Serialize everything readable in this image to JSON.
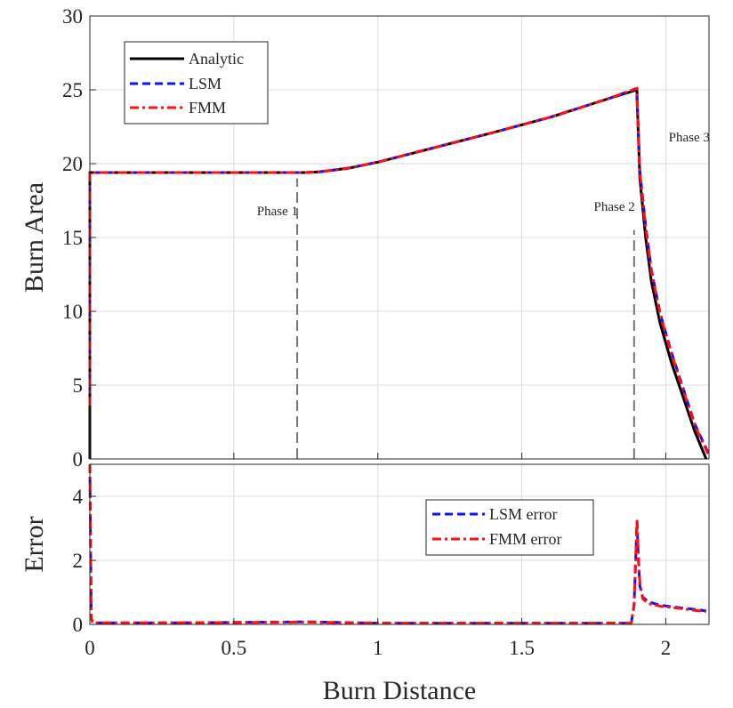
{
  "chart_data": [
    {
      "type": "line",
      "xlabel": "Burn Distance",
      "ylabel": "Burn Area",
      "xlim": [
        0,
        2.15
      ],
      "ylim": [
        0,
        30
      ],
      "xticks": [
        0,
        0.5,
        1,
        1.5,
        2
      ],
      "xtick_labels": [
        "0",
        "0.5",
        "1",
        "1.5",
        "2"
      ],
      "yticks": [
        0,
        5,
        10,
        15,
        20,
        25,
        30
      ],
      "ytick_labels": [
        "0",
        "5",
        "10",
        "15",
        "20",
        "25",
        "30"
      ],
      "grid": true,
      "legend": "top-left",
      "series": [
        {
          "name": "Analytic",
          "color": "#000000",
          "style": "solid",
          "x": [
            0,
            0,
            0.75,
            0.8,
            0.9,
            1.0,
            1.2,
            1.4,
            1.6,
            1.8,
            1.9,
            1.9,
            1.91,
            1.93,
            1.95,
            1.98,
            2.02,
            2.06,
            2.1,
            2.14
          ],
          "y": [
            0,
            19.4,
            19.4,
            19.45,
            19.7,
            20.1,
            21.1,
            22.1,
            23.15,
            24.4,
            25.0,
            24.5,
            19.0,
            15.0,
            12.0,
            9.2,
            6.5,
            4.2,
            1.9,
            0
          ]
        },
        {
          "name": "LSM",
          "color": "#1010ff",
          "style": "dashed",
          "x": [
            0,
            0,
            0.75,
            0.8,
            0.9,
            1.0,
            1.2,
            1.4,
            1.6,
            1.8,
            1.9,
            1.9,
            1.91,
            1.93,
            1.95,
            1.98,
            2.02,
            2.06,
            2.1,
            2.15
          ],
          "y": [
            3.6,
            19.4,
            19.4,
            19.45,
            19.7,
            20.1,
            21.1,
            22.1,
            23.15,
            24.4,
            25.1,
            24.6,
            19.5,
            15.8,
            12.8,
            9.9,
            7.2,
            4.8,
            2.4,
            0.3
          ]
        },
        {
          "name": "FMM",
          "color": "#ff1010",
          "style": "dashdot",
          "x": [
            0,
            0,
            0.75,
            0.8,
            0.9,
            1.0,
            1.2,
            1.4,
            1.6,
            1.8,
            1.9,
            1.9,
            1.91,
            1.93,
            1.95,
            1.98,
            2.02,
            2.06,
            2.1,
            2.15
          ],
          "y": [
            3.6,
            19.4,
            19.4,
            19.45,
            19.7,
            20.1,
            21.1,
            22.1,
            23.15,
            24.4,
            25.1,
            24.6,
            19.4,
            15.7,
            12.7,
            9.8,
            7.1,
            4.7,
            2.3,
            0.2
          ]
        }
      ],
      "annotations": [
        {
          "text": "Phase 1",
          "x": 0.58,
          "y": 16.5
        },
        {
          "text": "Phase 2",
          "x": 1.75,
          "y": 16.8
        },
        {
          "text": "Phase 3",
          "x": 2.01,
          "y": 21.5
        }
      ],
      "phase_lines": [
        {
          "x": 0.72,
          "y0": 0,
          "y1": 19.0
        },
        {
          "x": 1.89,
          "y0": 0,
          "y1": 15.5
        }
      ]
    },
    {
      "type": "line",
      "xlabel": "Burn Distance",
      "ylabel": "Error",
      "xlim": [
        0,
        2.15
      ],
      "ylim": [
        0,
        5
      ],
      "xticks": [
        0,
        0.5,
        1,
        1.5,
        2
      ],
      "xtick_labels": [
        "0",
        "0.5",
        "1",
        "1.5",
        "2"
      ],
      "yticks": [
        0,
        2,
        4
      ],
      "ytick_labels": [
        "0",
        "2",
        "4"
      ],
      "grid": true,
      "legend": "center-right",
      "series": [
        {
          "name": "LSM error",
          "color": "#1010ff",
          "style": "dashed",
          "x": [
            0,
            0.005,
            0.01,
            0.3,
            0.6,
            0.75,
            1.0,
            1.3,
            1.6,
            1.88,
            1.89,
            1.9,
            1.905,
            1.91,
            1.92,
            1.94,
            1.98,
            2.05,
            2.1,
            2.14
          ],
          "y": [
            5,
            0.2,
            0.05,
            0.05,
            0.07,
            0.08,
            0.04,
            0.04,
            0.04,
            0.04,
            0.6,
            3.2,
            2.0,
            1.2,
            0.85,
            0.7,
            0.6,
            0.52,
            0.47,
            0.42
          ]
        },
        {
          "name": "FMM error",
          "color": "#ff1010",
          "style": "dashdot",
          "x": [
            0,
            0.005,
            0.01,
            0.3,
            0.6,
            0.75,
            1.0,
            1.3,
            1.6,
            1.88,
            1.89,
            1.9,
            1.905,
            1.91,
            1.92,
            1.94,
            1.98,
            2.05,
            2.1,
            2.14
          ],
          "y": [
            5,
            0.2,
            0.05,
            0.05,
            0.06,
            0.07,
            0.04,
            0.04,
            0.04,
            0.04,
            0.6,
            3.3,
            2.1,
            1.3,
            0.8,
            0.65,
            0.57,
            0.5,
            0.44,
            0.4
          ]
        }
      ]
    }
  ]
}
